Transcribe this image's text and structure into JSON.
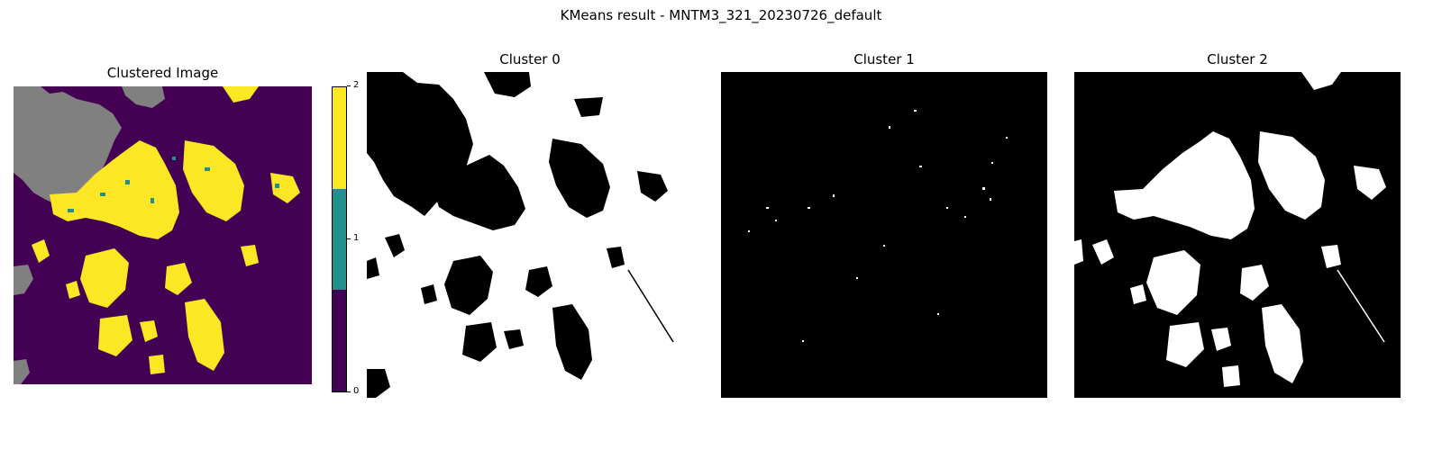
{
  "figure": {
    "title": "KMeans result - MNTM3_321_20230726_default"
  },
  "colors": {
    "cluster_0": "#440154",
    "cluster_1": "#21908d",
    "cluster_2": "#fde725",
    "mask": "#808080",
    "binary_on": "#ffffff",
    "binary_off": "#000000"
  },
  "chart_data": [
    {
      "type": "heatmap",
      "title": "Clustered Image",
      "colormap": "viridis",
      "classes": [
        0,
        1,
        2
      ],
      "colorbar": {
        "ticks": [
          "0",
          "1",
          "2"
        ],
        "range": [
          0,
          2
        ]
      },
      "approx_class_fractions": {
        "0": 0.68,
        "1": 0.03,
        "2": 0.21,
        "masked": 0.08
      },
      "axes": "off"
    },
    {
      "type": "heatmap",
      "title": "Cluster 0",
      "colormap": "binary (white = member)",
      "approx_white_fraction": 0.72,
      "axes": "off"
    },
    {
      "type": "heatmap",
      "title": "Cluster 1",
      "colormap": "binary (white = member)",
      "approx_white_fraction": 0.02,
      "axes": "off"
    },
    {
      "type": "heatmap",
      "title": "Cluster 2",
      "colormap": "binary (white = member)",
      "approx_white_fraction": 0.3,
      "axes": "off"
    }
  ]
}
